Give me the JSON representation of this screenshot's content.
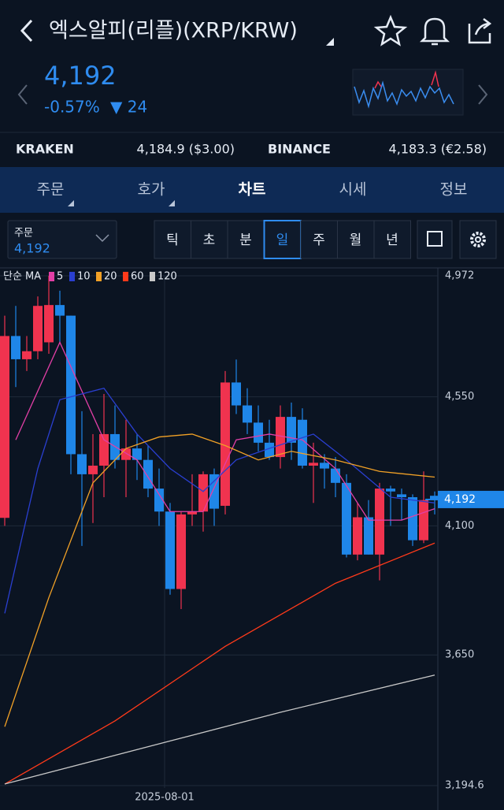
{
  "header": {
    "title": "엑스알피(리플)(XRP/KRW)",
    "price": "4,192",
    "change_pct": "-0.57%",
    "change": "▼ 24"
  },
  "exchanges": [
    {
      "name": "KRAKEN",
      "value": "4,184.9 ($3.00)"
    },
    {
      "name": "BINANCE",
      "value": "4,183.3 (€2.58)"
    }
  ],
  "tabs": [
    "주문",
    "호가",
    "차트",
    "시세",
    "정보"
  ],
  "order_box": {
    "label": "주문",
    "value": "4,192"
  },
  "periods": [
    "틱",
    "초",
    "분",
    "일",
    "주",
    "월",
    "년"
  ],
  "chart_data": {
    "type": "candlestick",
    "ma_label": "단순 MA",
    "up_color": "#f0334f",
    "down_color": "#1f86e8",
    "open": [
      4128,
      4762,
      4681,
      4709,
      4740,
      4870,
      4833,
      4350,
      4280,
      4310,
      4420,
      4330,
      4370,
      4330,
      4230,
      4150,
      3880,
      4140,
      4150,
      4280,
      4170,
      4600,
      4520,
      4460,
      4390,
      4340,
      4480,
      4470,
      4310,
      4320,
      4300,
      4250,
      4000,
      4130,
      4000,
      4230,
      4210,
      4200,
      4050,
      4205
    ],
    "high": [
      4833,
      4867,
      4762,
      4900,
      4972,
      4920,
      4833,
      4500,
      4420,
      4560,
      4520,
      4470,
      4420,
      4380,
      4300,
      4180,
      4150,
      4280,
      4290,
      4300,
      4640,
      4680,
      4580,
      4520,
      4470,
      4520,
      4530,
      4510,
      4390,
      4350,
      4340,
      4280,
      4180,
      4190,
      4250,
      4240,
      4230,
      4210,
      4290,
      4220
    ],
    "low": [
      4100,
      4584,
      4640,
      4681,
      4700,
      4740,
      4280,
      4030,
      4110,
      4200,
      4300,
      4200,
      4260,
      4200,
      4100,
      3860,
      3810,
      4100,
      4080,
      4100,
      4140,
      4490,
      4420,
      4360,
      4330,
      4300,
      4330,
      4300,
      4180,
      4230,
      4200,
      3990,
      3980,
      4000,
      3910,
      4100,
      4120,
      4030,
      4040,
      4140
    ],
    "close": [
      4762,
      4681,
      4709,
      4867,
      4870,
      4833,
      4350,
      4280,
      4310,
      4420,
      4330,
      4370,
      4330,
      4230,
      4150,
      3880,
      4140,
      4150,
      4280,
      4160,
      4600,
      4520,
      4460,
      4390,
      4340,
      4480,
      4390,
      4310,
      4320,
      4300,
      4250,
      4000,
      4130,
      4000,
      4230,
      4220,
      4200,
      4050,
      4190,
      4192
    ],
    "series": [
      {
        "name": "5",
        "color": "#e23fa6",
        "x": [
          1,
          5,
          9,
          12,
          15,
          18,
          21,
          24,
          27,
          30,
          33,
          36,
          39
        ],
        "values": [
          4400,
          4740,
          4400,
          4330,
          4150,
          4150,
          4400,
          4420,
          4400,
          4300,
          4120,
          4120,
          4160
        ]
      },
      {
        "name": "10",
        "color": "#2a3fd0",
        "x": [
          0,
          3,
          5,
          9,
          12,
          15,
          18,
          21,
          24,
          28,
          31,
          35,
          39
        ],
        "values": [
          3795,
          4300,
          4540,
          4580,
          4420,
          4300,
          4220,
          4330,
          4370,
          4420,
          4330,
          4200,
          4180
        ]
      },
      {
        "name": "20",
        "color": "#f2a126",
        "x": [
          0,
          4,
          8,
          11,
          14,
          17,
          20,
          23,
          26,
          30,
          34,
          39
        ],
        "values": [
          3400,
          3850,
          4250,
          4370,
          4410,
          4420,
          4380,
          4330,
          4360,
          4330,
          4290,
          4270
        ]
      },
      {
        "name": "60",
        "color": "#ff3a1a",
        "x": [
          0,
          10,
          20,
          30,
          39
        ],
        "values": [
          3200,
          3420,
          3680,
          3900,
          4040
        ]
      },
      {
        "name": "120",
        "color": "#c8c8c8",
        "x": [
          0,
          15,
          25,
          39
        ],
        "values": [
          3200,
          3350,
          3450,
          3580
        ]
      }
    ],
    "ylim": [
      3194.6,
      4972
    ],
    "yticks": [
      {
        "value": 4972,
        "label": "4,972"
      },
      {
        "value": 4550,
        "label": "4,550"
      },
      {
        "value": 4100,
        "label": "4,100"
      },
      {
        "value": 3650,
        "label": "3,650"
      },
      {
        "value": 3194.6,
        "label": "3,194.6"
      }
    ],
    "xticks": [
      {
        "value": 14.5,
        "label": "2025-08-01"
      }
    ],
    "current_price": {
      "value": 4192,
      "label": "4,192"
    },
    "grid": true
  }
}
